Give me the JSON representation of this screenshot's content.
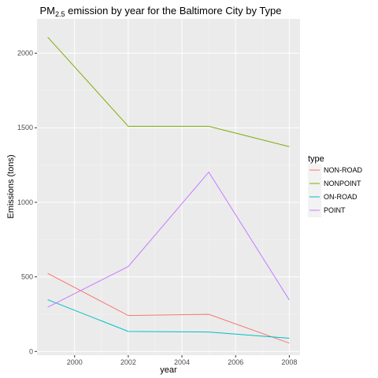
{
  "chart_data": {
    "type": "line",
    "title": {
      "prefix": "PM",
      "subscript": "2.5",
      "suffix": " emission by year for the Baltimore City by Type"
    },
    "xlabel": "year",
    "ylabel": "Emissions (tons)",
    "xlim": [
      1998.6,
      2008.4
    ],
    "ylim": [
      -25,
      2230
    ],
    "x_ticks": [
      2000,
      2002,
      2004,
      2006,
      2008
    ],
    "y_ticks": [
      0,
      500,
      1000,
      1500,
      2000
    ],
    "x_tick_labels": [
      "2000",
      "2002",
      "2004",
      "2006",
      "2008"
    ],
    "y_tick_labels": [
      "0",
      "500",
      "1000",
      "1500",
      "2000"
    ],
    "grid": true,
    "legend": {
      "title": "type",
      "placement": "right"
    },
    "x": [
      1999,
      2002,
      2005,
      2008
    ],
    "series": [
      {
        "name": "NON-ROAD",
        "color": "#F8766D",
        "values": [
          522.94,
          240.85,
          248.93,
          55.82
        ]
      },
      {
        "name": "NONPOINT",
        "color": "#7CAE00",
        "values": [
          2107.63,
          1509.5,
          1509.5,
          1373.21
        ]
      },
      {
        "name": "ON-ROAD",
        "color": "#00BFC4",
        "values": [
          346.82,
          134.31,
          130.43,
          88.28
        ]
      },
      {
        "name": "POINT",
        "color": "#C77CFF",
        "values": [
          296.8,
          569.26,
          1202.49,
          344.98
        ]
      }
    ]
  }
}
